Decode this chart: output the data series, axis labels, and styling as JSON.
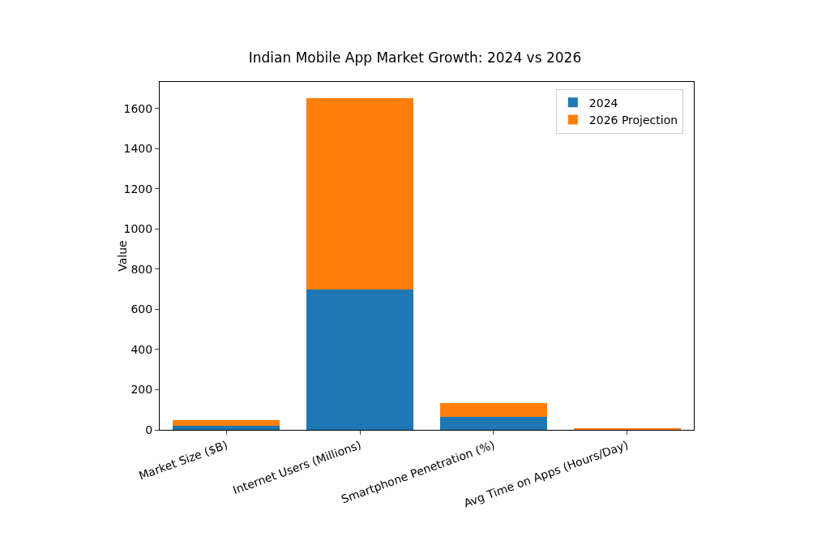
{
  "chart_data": {
    "type": "bar",
    "title": "Indian Mobile App Market Growth: 2024 vs 2026",
    "ylabel": "Value",
    "categories": [
      "Market Size ($B)",
      "Internet Users (Millions)",
      "Smartphone Penetration (%)",
      "Avg Time on Apps (Hours/Day)"
    ],
    "series": [
      {
        "name": "2024",
        "color": "#1f77b4",
        "values": [
          20,
          700,
          63,
          null
        ]
      },
      {
        "name": "2026 Projection",
        "color": "#ff7f0e",
        "values": [
          27,
          950,
          70,
          5
        ]
      }
    ],
    "stacked": true,
    "ylim": [
      0,
      1732
    ],
    "yticks": [
      0,
      200,
      400,
      600,
      800,
      1000,
      1200,
      1400,
      1600
    ],
    "grid": false,
    "legend": "top right"
  }
}
